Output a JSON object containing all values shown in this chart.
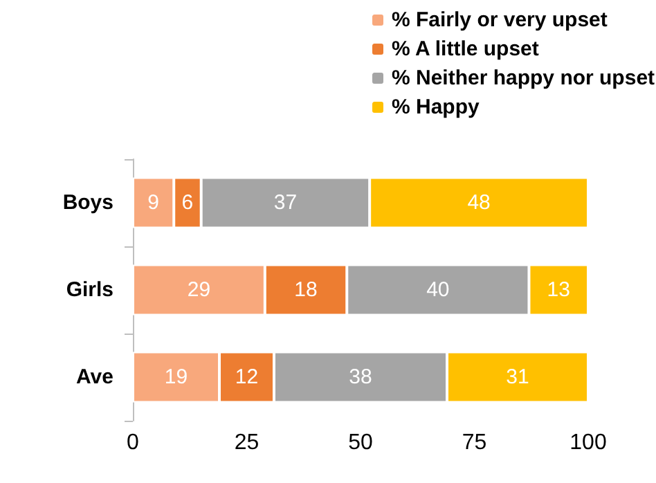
{
  "chart_data": {
    "type": "bar",
    "orientation": "horizontal",
    "stacked": true,
    "categories": [
      "Boys",
      "Girls",
      "Ave"
    ],
    "series": [
      {
        "name": "% Fairly or very upset",
        "color": "#f8a87c",
        "values": [
          9,
          29,
          19
        ]
      },
      {
        "name": "% A little upset",
        "color": "#ed7d31",
        "values": [
          6,
          18,
          12
        ]
      },
      {
        "name": "% Neither happy nor upset",
        "color": "#a5a5a5",
        "values": [
          37,
          40,
          38
        ]
      },
      {
        "name": "% Happy",
        "color": "#ffc000",
        "values": [
          48,
          13,
          31
        ]
      }
    ],
    "xlim": [
      0,
      100
    ],
    "xticks": [
      0,
      25,
      50,
      75,
      100
    ],
    "data_labels": true,
    "legend": "top",
    "grid": false
  }
}
